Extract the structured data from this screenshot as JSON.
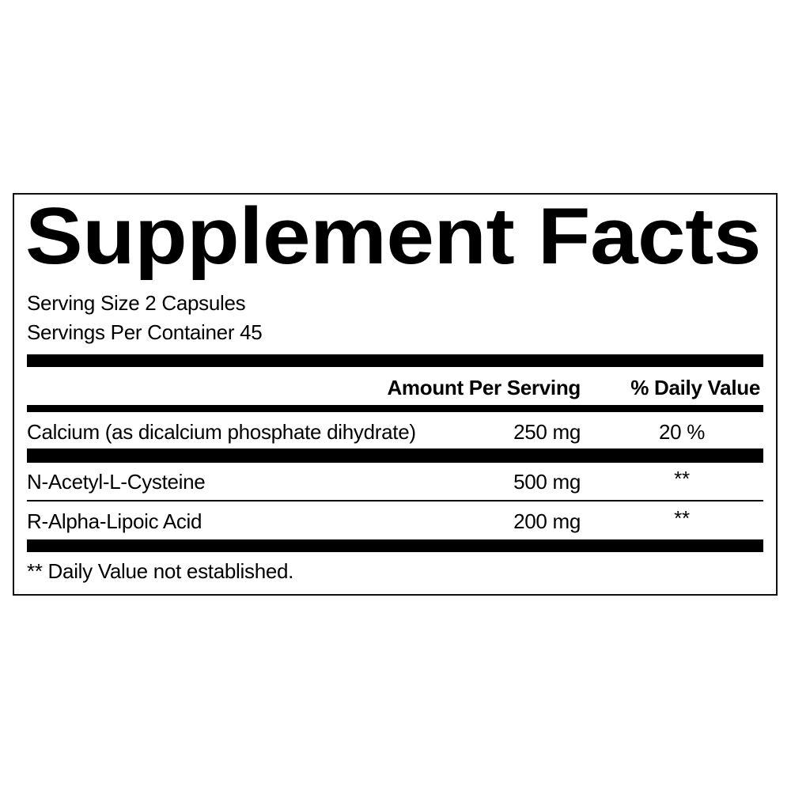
{
  "title": "Supplement Facts",
  "serving_size": "Serving Size 2 Capsules",
  "servings_per_container": "Servings Per Container 45",
  "header": {
    "amount": "Amount Per Serving",
    "daily_value": "% Daily Value"
  },
  "rows": [
    {
      "name": "Calcium (as dicalcium phosphate dihydrate)",
      "amount": "250 mg",
      "dv": "20 %"
    },
    {
      "name": "N-Acetyl-L-Cysteine",
      "amount": "500 mg",
      "dv": "**"
    },
    {
      "name": "R-Alpha-Lipoic Acid",
      "amount": "200 mg",
      "dv": "**"
    }
  ],
  "footnote": "** Daily Value not established."
}
